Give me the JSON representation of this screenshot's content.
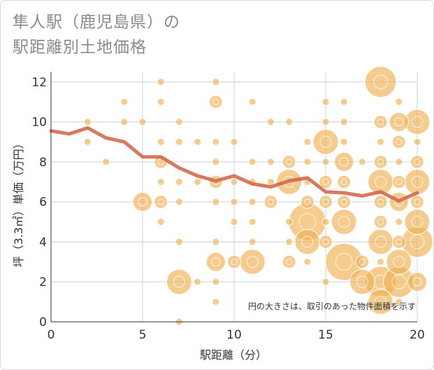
{
  "title": {
    "line1": "隼人駅（鹿児島県）の",
    "line2": "駅距離別土地価格"
  },
  "note": "円の大きさは、取引のあった物件面積を示す",
  "colors": {
    "bubble": "#f0b050",
    "bubble_stroke": "#ffffff",
    "line": "#d4694a",
    "grid": "#c8d4e0",
    "frame_border": "#d9d9d9",
    "title_text": "#8a8a8a"
  },
  "chart_data": {
    "type": "scatter",
    "xlabel": "駅距離（分）",
    "ylabel": "坪（3.3㎡）単価（万円）",
    "xlim": [
      0,
      20
    ],
    "ylim": [
      0,
      12.5
    ],
    "xticks": [
      0,
      5,
      10,
      15,
      20
    ],
    "yticks": [
      0,
      2,
      4,
      6,
      8,
      10,
      12
    ],
    "grid": true,
    "bubble_size_meaning": "物件面積",
    "points": [
      {
        "x": 2,
        "y": 10,
        "s": 1
      },
      {
        "x": 2,
        "y": 9,
        "s": 1
      },
      {
        "x": 3,
        "y": 8,
        "s": 1
      },
      {
        "x": 4,
        "y": 11,
        "s": 1
      },
      {
        "x": 4,
        "y": 10,
        "s": 1
      },
      {
        "x": 5,
        "y": 10,
        "s": 1
      },
      {
        "x": 5,
        "y": 6,
        "s": 3
      },
      {
        "x": 6,
        "y": 12,
        "s": 1
      },
      {
        "x": 6,
        "y": 11,
        "s": 1
      },
      {
        "x": 6,
        "y": 9,
        "s": 1
      },
      {
        "x": 6,
        "y": 8,
        "s": 2
      },
      {
        "x": 6,
        "y": 7,
        "s": 1
      },
      {
        "x": 6,
        "y": 6,
        "s": 2
      },
      {
        "x": 6,
        "y": 5,
        "s": 1
      },
      {
        "x": 7,
        "y": 10,
        "s": 1
      },
      {
        "x": 7,
        "y": 9,
        "s": 1
      },
      {
        "x": 7,
        "y": 7,
        "s": 1
      },
      {
        "x": 7,
        "y": 6,
        "s": 1
      },
      {
        "x": 7,
        "y": 4,
        "s": 1
      },
      {
        "x": 7,
        "y": 2,
        "s": 4
      },
      {
        "x": 7,
        "y": 0,
        "s": 1
      },
      {
        "x": 8,
        "y": 9,
        "s": 1
      },
      {
        "x": 8,
        "y": 7,
        "s": 1
      },
      {
        "x": 8,
        "y": 2,
        "s": 1
      },
      {
        "x": 9,
        "y": 12,
        "s": 1
      },
      {
        "x": 9,
        "y": 11,
        "s": 2
      },
      {
        "x": 9,
        "y": 9,
        "s": 1
      },
      {
        "x": 9,
        "y": 8,
        "s": 1
      },
      {
        "x": 9,
        "y": 7,
        "s": 2
      },
      {
        "x": 9,
        "y": 6,
        "s": 1
      },
      {
        "x": 9,
        "y": 4,
        "s": 1
      },
      {
        "x": 9,
        "y": 3,
        "s": 3
      },
      {
        "x": 9,
        "y": 2,
        "s": 1
      },
      {
        "x": 9,
        "y": 1,
        "s": 1
      },
      {
        "x": 10,
        "y": 9,
        "s": 1
      },
      {
        "x": 10,
        "y": 7,
        "s": 1
      },
      {
        "x": 10,
        "y": 6,
        "s": 1
      },
      {
        "x": 10,
        "y": 5,
        "s": 1
      },
      {
        "x": 10,
        "y": 3,
        "s": 2
      },
      {
        "x": 11,
        "y": 11,
        "s": 1
      },
      {
        "x": 11,
        "y": 8,
        "s": 1
      },
      {
        "x": 11,
        "y": 7,
        "s": 1
      },
      {
        "x": 11,
        "y": 6,
        "s": 1
      },
      {
        "x": 11,
        "y": 5,
        "s": 1
      },
      {
        "x": 11,
        "y": 4,
        "s": 1
      },
      {
        "x": 11,
        "y": 3,
        "s": 4
      },
      {
        "x": 12,
        "y": 10,
        "s": 1
      },
      {
        "x": 12,
        "y": 8,
        "s": 1
      },
      {
        "x": 12,
        "y": 7,
        "s": 1
      },
      {
        "x": 12,
        "y": 6,
        "s": 2
      },
      {
        "x": 13,
        "y": 10,
        "s": 1
      },
      {
        "x": 13,
        "y": 8,
        "s": 2
      },
      {
        "x": 13,
        "y": 7,
        "s": 4
      },
      {
        "x": 13,
        "y": 5,
        "s": 1
      },
      {
        "x": 13,
        "y": 4,
        "s": 1
      },
      {
        "x": 13,
        "y": 3,
        "s": 2
      },
      {
        "x": 14,
        "y": 9,
        "s": 1
      },
      {
        "x": 14,
        "y": 8,
        "s": 1
      },
      {
        "x": 14,
        "y": 7,
        "s": 1
      },
      {
        "x": 14,
        "y": 6,
        "s": 2
      },
      {
        "x": 14,
        "y": 5,
        "s": 6
      },
      {
        "x": 14,
        "y": 4,
        "s": 4
      },
      {
        "x": 14,
        "y": 3,
        "s": 1
      },
      {
        "x": 15,
        "y": 11,
        "s": 1
      },
      {
        "x": 15,
        "y": 10,
        "s": 1
      },
      {
        "x": 15,
        "y": 9,
        "s": 4
      },
      {
        "x": 15,
        "y": 8,
        "s": 1
      },
      {
        "x": 15,
        "y": 7,
        "s": 2
      },
      {
        "x": 15,
        "y": 6,
        "s": 2
      },
      {
        "x": 15,
        "y": 5,
        "s": 1
      },
      {
        "x": 15,
        "y": 4,
        "s": 2
      },
      {
        "x": 15,
        "y": 2,
        "s": 1
      },
      {
        "x": 16,
        "y": 11,
        "s": 1
      },
      {
        "x": 16,
        "y": 10,
        "s": 1
      },
      {
        "x": 16,
        "y": 9,
        "s": 1
      },
      {
        "x": 16,
        "y": 8,
        "s": 3
      },
      {
        "x": 16,
        "y": 7,
        "s": 2
      },
      {
        "x": 16,
        "y": 6,
        "s": 2
      },
      {
        "x": 16,
        "y": 5,
        "s": 4
      },
      {
        "x": 16,
        "y": 3,
        "s": 6
      },
      {
        "x": 17,
        "y": 8,
        "s": 1
      },
      {
        "x": 17,
        "y": 3,
        "s": 2
      },
      {
        "x": 17,
        "y": 2,
        "s": 4
      },
      {
        "x": 18,
        "y": 12,
        "s": 5
      },
      {
        "x": 18,
        "y": 10,
        "s": 2
      },
      {
        "x": 18,
        "y": 9,
        "s": 1
      },
      {
        "x": 18,
        "y": 8,
        "s": 2
      },
      {
        "x": 18,
        "y": 7,
        "s": 4
      },
      {
        "x": 18,
        "y": 6,
        "s": 2
      },
      {
        "x": 18,
        "y": 5,
        "s": 2
      },
      {
        "x": 18,
        "y": 4,
        "s": 4
      },
      {
        "x": 18,
        "y": 3,
        "s": 1
      },
      {
        "x": 18,
        "y": 2,
        "s": 5
      },
      {
        "x": 18,
        "y": 1,
        "s": 4
      },
      {
        "x": 19,
        "y": 11,
        "s": 1
      },
      {
        "x": 19,
        "y": 10,
        "s": 3
      },
      {
        "x": 19,
        "y": 9,
        "s": 2
      },
      {
        "x": 19,
        "y": 8,
        "s": 1
      },
      {
        "x": 19,
        "y": 7,
        "s": 2
      },
      {
        "x": 19,
        "y": 6,
        "s": 3
      },
      {
        "x": 19,
        "y": 5,
        "s": 1
      },
      {
        "x": 19,
        "y": 4,
        "s": 2
      },
      {
        "x": 19,
        "y": 3,
        "s": 4
      },
      {
        "x": 19,
        "y": 2,
        "s": 5
      },
      {
        "x": 19,
        "y": 1,
        "s": 1
      },
      {
        "x": 20,
        "y": 10,
        "s": 4
      },
      {
        "x": 20,
        "y": 9,
        "s": 1
      },
      {
        "x": 20,
        "y": 8,
        "s": 2
      },
      {
        "x": 20,
        "y": 7,
        "s": 4
      },
      {
        "x": 20,
        "y": 6,
        "s": 2
      },
      {
        "x": 20,
        "y": 5,
        "s": 4
      },
      {
        "x": 20,
        "y": 4,
        "s": 5
      },
      {
        "x": 20,
        "y": 2,
        "s": 3
      }
    ],
    "series": [
      {
        "type": "line",
        "x": [
          0,
          1,
          2,
          3,
          4,
          5,
          6,
          7,
          8,
          9,
          10,
          11,
          12,
          13,
          14,
          15,
          16,
          17,
          18,
          19,
          20
        ],
        "y": [
          9.55,
          9.4,
          9.7,
          9.2,
          9.0,
          8.25,
          8.25,
          7.7,
          7.3,
          7.05,
          7.3,
          6.9,
          6.75,
          7.05,
          7.2,
          6.5,
          6.45,
          6.3,
          6.5,
          6.05,
          6.45
        ]
      }
    ]
  }
}
